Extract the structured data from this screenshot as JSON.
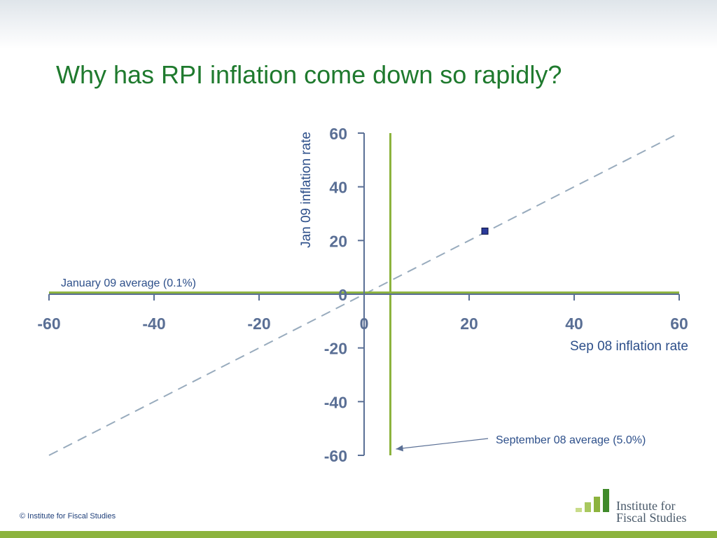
{
  "slide": {
    "title": "Why has RPI inflation come down so rapidly?",
    "copyright": "© Institute for Fiscal Studies",
    "logo_line1": "Institute for",
    "logo_line2": "Fiscal Studies"
  },
  "colors": {
    "title": "#1f7a2e",
    "axis": "#5a6f95",
    "average_line": "#8cb33d",
    "diagonal": "#98abbd",
    "marker_fill": "#2b3a9a",
    "annotation_text": "#2d4f8a",
    "footer_band": "#8cb33d"
  },
  "chart_data": {
    "type": "scatter",
    "title": "",
    "xlabel": "Sep 08 inflation rate",
    "ylabel": "Jan 09 inflation rate",
    "xlim": [
      -60,
      60
    ],
    "ylim": [
      -60,
      60
    ],
    "x_ticks": [
      -60,
      -40,
      -20,
      0,
      20,
      40,
      60
    ],
    "y_ticks": [
      60,
      40,
      20,
      0,
      -20,
      -40,
      -60
    ],
    "grid": false,
    "points": [
      {
        "x": 23,
        "y": 23.5
      }
    ],
    "reference_lines": {
      "diagonal": {
        "from": [
          -60,
          -60
        ],
        "to": [
          60,
          60
        ],
        "style": "dashed"
      },
      "vertical": {
        "x": 5.0,
        "label": "September 08 average (5.0%)"
      },
      "horizontal": {
        "y": 0.1,
        "label": "January 09 average (0.1%)"
      }
    }
  }
}
